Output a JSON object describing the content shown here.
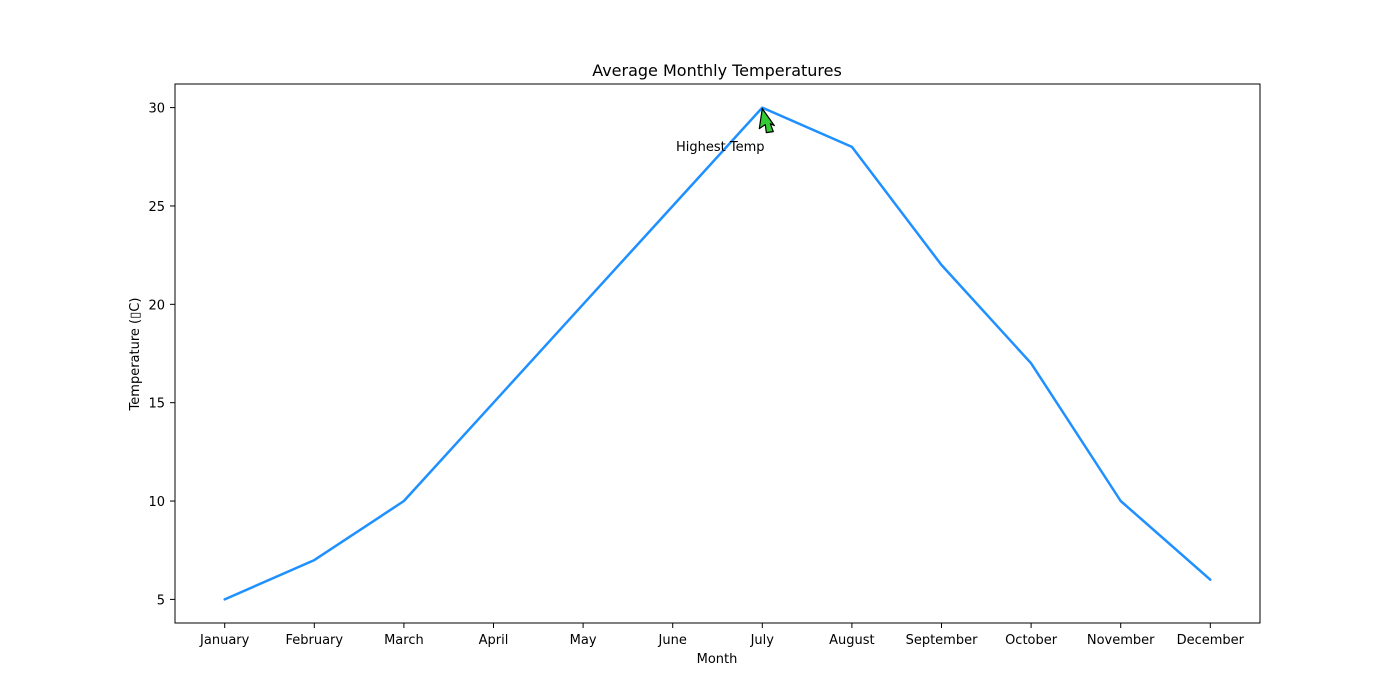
{
  "chart_data": {
    "type": "line",
    "title": "Average Monthly Temperatures",
    "xlabel": "Month",
    "ylabel": "Temperature (▯C)",
    "categories": [
      "January",
      "February",
      "March",
      "April",
      "May",
      "June",
      "July",
      "August",
      "September",
      "October",
      "November",
      "December"
    ],
    "series": [
      {
        "values": [
          5,
          7,
          10,
          15,
          20,
          25,
          30,
          28,
          22,
          17,
          10,
          6
        ],
        "color": "#1e90ff"
      }
    ],
    "ylim": [
      3.8,
      31.2
    ],
    "yticks": [
      5,
      10,
      15,
      20,
      25,
      30
    ],
    "grid": false,
    "annotation": {
      "text": "Highest Temp",
      "category": "July",
      "value": 30,
      "text_value": 28,
      "arrow_color": "#32cd32"
    }
  }
}
